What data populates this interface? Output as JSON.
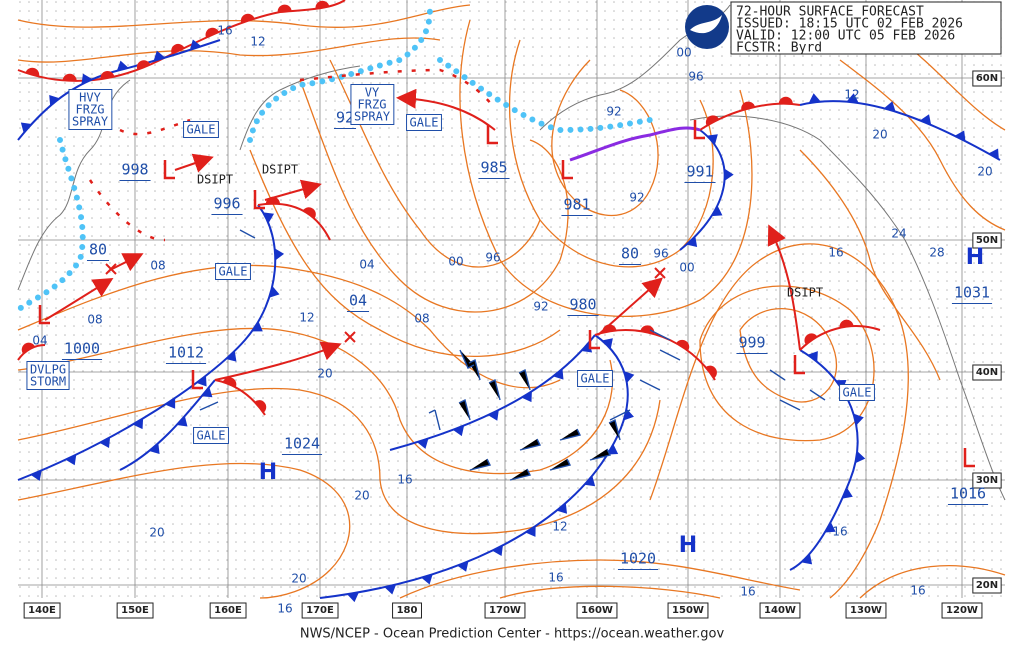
{
  "header": {
    "lines": [
      "72-HOUR SURFACE FORECAST",
      "ISSUED: 18:15 UTC 02 FEB 2026",
      "VALID:  12:00 UTC 05 FEB 2026",
      "FCSTR:  Byrd"
    ]
  },
  "footer": "NWS/NCEP - Ocean Prediction Center - https://ocean.weather.gov",
  "longitudes": [
    "140E",
    "150E",
    "160E",
    "170E",
    "180",
    "170W",
    "160W",
    "150W",
    "140W",
    "130W",
    "120W"
  ],
  "latitudes": [
    "60N",
    "50N",
    "40N",
    "30N",
    "20N"
  ],
  "pressures": [
    "998",
    "996",
    "985",
    "981",
    "991",
    "980",
    "999",
    "1000",
    "1012",
    "1024",
    "1031",
    "1016",
    "1020",
    "92",
    "80",
    "80",
    "04"
  ],
  "highs": [
    "H",
    "H",
    "H"
  ],
  "isobar_labels": [
    "16",
    "12",
    "12",
    "20",
    "20",
    "24",
    "28",
    "16",
    "96",
    "00",
    "92",
    "92",
    "96",
    "00",
    "96",
    "00",
    "04",
    "08",
    "08",
    "04",
    "12",
    "08",
    "92",
    "20",
    "16",
    "20",
    "20",
    "20",
    "12",
    "16",
    "16",
    "16",
    "16",
    "16"
  ],
  "warnings": [
    [
      "HVY",
      "FRZG",
      "SPRAY"
    ],
    [
      "GALE"
    ],
    [
      "VY",
      "FRZG",
      "SPRAY"
    ],
    [
      "GALE"
    ],
    [
      "GALE"
    ],
    [
      "GALE"
    ],
    [
      "GALE"
    ],
    [
      "GALE"
    ],
    [
      "DVLPG",
      "STORM"
    ]
  ],
  "dissipating": [
    "DSIPT",
    "DSIPT",
    "DSIPT"
  ]
}
